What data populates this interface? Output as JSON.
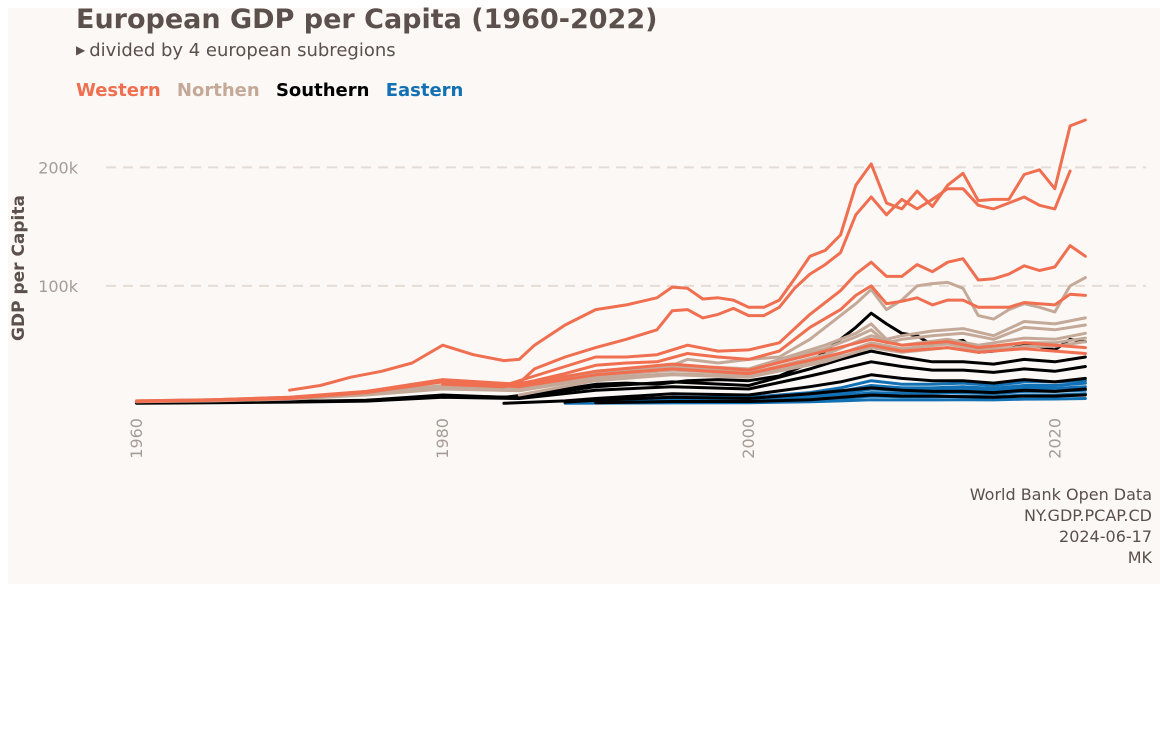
{
  "title": "European GDP per Capita  (1960-2022)",
  "subtitle": "divided by 4 european subregions",
  "caption": [
    "World Bank Open Data",
    "NY.GDP.PCAP.CD",
    "2024-06-17",
    "MK"
  ],
  "chart_data": {
    "type": "line",
    "ylabel": "GDP per Capita",
    "xlabel": "",
    "xlim": [
      1958,
      2024
    ],
    "ylim": [
      -3000,
      240000
    ],
    "x_ticks": [
      1960,
      1980,
      2000,
      2020
    ],
    "x_tick_labels": [
      "1960",
      "1980",
      "2000",
      "2020"
    ],
    "y_ticks": [
      100000,
      200000
    ],
    "y_tick_labels": [
      "100k",
      "200k"
    ],
    "grid": "horizontal dashed",
    "legend": [
      {
        "name": "Western",
        "color": "#ef6f50"
      },
      {
        "name": "Northen",
        "color": "#c4a999"
      },
      {
        "name": "Southern",
        "color": "#000000"
      },
      {
        "name": "Eastern",
        "color": "#1270b4"
      }
    ],
    "series": [
      {
        "name": "Western",
        "color": "#ef6f50",
        "x": [
          1970,
          1972,
          1974,
          1976,
          1978,
          1980,
          1982,
          1984,
          1985,
          1986,
          1988,
          1990,
          1992,
          1994,
          1995,
          1996,
          1997,
          1998,
          1999,
          2000,
          2001,
          2002,
          2003,
          2004,
          2005,
          2006,
          2007,
          2008,
          2009,
          2010,
          2011,
          2012,
          2013,
          2014,
          2015,
          2016,
          2017,
          2018,
          2019,
          2020,
          2021,
          2022
        ],
        "y": [
          12000,
          16000,
          23000,
          28000,
          35000,
          50000,
          42000,
          37000,
          38000,
          50000,
          67000,
          80000,
          84000,
          90000,
          99000,
          98000,
          89000,
          90000,
          88000,
          82000,
          82000,
          88000,
          106000,
          125000,
          130000,
          143000,
          185000,
          203000,
          170000,
          165000,
          180000,
          167000,
          185000,
          195000,
          172000,
          173000,
          173000,
          194000,
          198000,
          182000,
          235000,
          240000
        ]
      },
      {
        "name": "Western",
        "color": "#ef6f50",
        "x": [
          1980,
          1982,
          1984,
          1985,
          1986,
          1988,
          1990,
          1992,
          1994,
          1995,
          1996,
          1997,
          1998,
          1999,
          2000,
          2001,
          2002,
          2003,
          2004,
          2005,
          2006,
          2007,
          2008,
          2009,
          2010,
          2011,
          2012,
          2013,
          2014,
          2015,
          2016,
          2017,
          2018,
          2019,
          2020,
          2021
        ],
        "y": [
          20000,
          19000,
          17000,
          18000,
          30000,
          40000,
          48000,
          55000,
          63000,
          79000,
          80000,
          73000,
          76000,
          81000,
          75000,
          75000,
          82000,
          98000,
          110000,
          118000,
          128000,
          160000,
          175000,
          160000,
          173000,
          165000,
          173000,
          182000,
          182000,
          168000,
          165000,
          170000,
          175000,
          168000,
          165000,
          197000
        ]
      },
      {
        "name": "Western",
        "color": "#ef6f50",
        "x": [
          1980,
          1984,
          1986,
          1988,
          1990,
          1992,
          1994,
          1996,
          1998,
          2000,
          2002,
          2004,
          2006,
          2007,
          2008,
          2009,
          2010,
          2011,
          2012,
          2013,
          2014,
          2015,
          2016,
          2017,
          2018,
          2019,
          2020,
          2021,
          2022
        ],
        "y": [
          19000,
          16000,
          24000,
          32000,
          40000,
          40000,
          42000,
          50000,
          45000,
          46000,
          52000,
          76000,
          96000,
          110000,
          120000,
          108000,
          108000,
          118000,
          112000,
          120000,
          123000,
          105000,
          106000,
          110000,
          117000,
          113000,
          116000,
          134000,
          125000
        ]
      },
      {
        "name": "Western",
        "color": "#ef6f50",
        "x": [
          1980,
          1984,
          1986,
          1988,
          1990,
          1992,
          1994,
          1996,
          1998,
          2000,
          2002,
          2004,
          2006,
          2007,
          2008,
          2009,
          2010,
          2011,
          2012,
          2013,
          2014,
          2015,
          2016,
          2017,
          2018,
          2019,
          2020,
          2021,
          2022
        ],
        "y": [
          17000,
          15000,
          20000,
          26000,
          33000,
          35000,
          36000,
          43000,
          40000,
          38000,
          45000,
          65000,
          80000,
          92000,
          100000,
          85000,
          87000,
          90000,
          84000,
          88000,
          88000,
          82000,
          82000,
          82000,
          86000,
          85000,
          84000,
          93000,
          92000
        ]
      },
      {
        "name": "Western",
        "color": "#ef6f50",
        "x": [
          1960,
          1965,
          1970,
          1975,
          1980,
          1985,
          1990,
          1995,
          2000,
          2005,
          2008,
          2010,
          2013,
          2015,
          2018,
          2020,
          2022
        ],
        "y": [
          3000,
          4000,
          6000,
          11000,
          21000,
          17000,
          28000,
          34000,
          29000,
          45000,
          55000,
          50000,
          53000,
          48000,
          52000,
          50000,
          48000
        ]
      },
      {
        "name": "Western",
        "color": "#ef6f50",
        "x": [
          1960,
          1965,
          1970,
          1975,
          1980,
          1985,
          1990,
          1995,
          2000,
          2005,
          2008,
          2010,
          2013,
          2015,
          2018,
          2020,
          2022
        ],
        "y": [
          2500,
          3500,
          5000,
          10000,
          19000,
          15000,
          25000,
          30000,
          26000,
          40000,
          50000,
          45000,
          48000,
          44000,
          47000,
          45000,
          43000
        ]
      },
      {
        "name": "Northen",
        "color": "#c4a999",
        "x": [
          1960,
          1965,
          1970,
          1975,
          1980,
          1985,
          1988,
          1990,
          1992,
          1994,
          1996,
          1998,
          2000,
          2002,
          2004,
          2006,
          2007,
          2008,
          2009,
          2010,
          2011,
          2012,
          2013,
          2014,
          2015,
          2016,
          2017,
          2018,
          2019,
          2020,
          2021,
          2022
        ],
        "y": [
          3000,
          4000,
          6000,
          10000,
          15000,
          15000,
          22000,
          28000,
          30000,
          28000,
          38000,
          35000,
          38000,
          40000,
          55000,
          75000,
          85000,
          97000,
          80000,
          88000,
          100000,
          102000,
          103000,
          98000,
          75000,
          72000,
          80000,
          85000,
          82000,
          78000,
          100000,
          107000
        ]
      },
      {
        "name": "Northen",
        "color": "#c4a999",
        "x": [
          1960,
          1965,
          1970,
          1975,
          1980,
          1985,
          1990,
          1995,
          2000,
          2003,
          2005,
          2007,
          2008,
          2009,
          2010,
          2012,
          2014,
          2016,
          2018,
          2020,
          2022
        ],
        "y": [
          2800,
          3800,
          5500,
          9500,
          16000,
          14000,
          27000,
          33000,
          30000,
          42000,
          50000,
          60000,
          68000,
          55000,
          58000,
          62000,
          64000,
          58000,
          70000,
          68000,
          73000
        ]
      },
      {
        "name": "Northen",
        "color": "#c4a999",
        "x": [
          1960,
          1965,
          1970,
          1975,
          1980,
          1985,
          1990,
          1995,
          2000,
          2003,
          2005,
          2007,
          2008,
          2009,
          2010,
          2012,
          2014,
          2016,
          2018,
          2020,
          2022
        ],
        "y": [
          2600,
          3600,
          5200,
          9000,
          15000,
          13000,
          26000,
          31000,
          28000,
          40000,
          47000,
          57000,
          63000,
          52000,
          55000,
          58000,
          60000,
          55000,
          65000,
          63000,
          67000
        ]
      },
      {
        "name": "Northen",
        "color": "#c4a999",
        "x": [
          1960,
          1965,
          1970,
          1975,
          1980,
          1985,
          1990,
          1995,
          2000,
          2005,
          2008,
          2010,
          2013,
          2015,
          2018,
          2020,
          2022
        ],
        "y": [
          2400,
          3300,
          5000,
          8500,
          14000,
          12000,
          24000,
          29000,
          26000,
          42000,
          58000,
          50000,
          55000,
          50000,
          56000,
          55000,
          60000
        ]
      },
      {
        "name": "Northen",
        "color": "#c4a999",
        "x": [
          1960,
          1965,
          1970,
          1975,
          1980,
          1985,
          1990,
          1995,
          2000,
          2005,
          2008,
          2010,
          2013,
          2015,
          2018,
          2020,
          2022
        ],
        "y": [
          2200,
          3000,
          4500,
          8000,
          13000,
          11500,
          22000,
          26000,
          24000,
          38000,
          52000,
          47000,
          51000,
          46000,
          52000,
          52000,
          56000
        ]
      },
      {
        "name": "Northen",
        "color": "#c4a999",
        "x": [
          1985,
          1990,
          1995,
          2000,
          2005,
          2008,
          2010,
          2013,
          2015,
          2018,
          2020,
          2022
        ],
        "y": [
          8000,
          20000,
          25000,
          23000,
          36000,
          48000,
          44000,
          48000,
          44000,
          49000,
          49000,
          53000
        ]
      },
      {
        "name": "Southern",
        "color": "#000000",
        "x": [
          1960,
          1965,
          1970,
          1975,
          1980,
          1982,
          1984,
          1986,
          1988,
          1990,
          1992,
          1994,
          1996,
          1998,
          2000,
          2002,
          2004,
          2006,
          2007,
          2008,
          2009,
          2010,
          2011,
          2012,
          2013,
          2014,
          2015,
          2016,
          2017,
          2018,
          2019,
          2020,
          2021,
          2022
        ],
        "y": [
          1500,
          2000,
          2500,
          3500,
          8000,
          7000,
          6000,
          9000,
          13000,
          17000,
          18000,
          17000,
          20000,
          21000,
          20000,
          24000,
          35000,
          55000,
          65000,
          77000,
          68000,
          60000,
          58000,
          50000,
          52000,
          54000,
          44000,
          45000,
          47000,
          50000,
          49000,
          46000,
          55000,
          53000
        ]
      },
      {
        "name": "Southern",
        "color": "#000000",
        "x": [
          1960,
          1965,
          1970,
          1975,
          1980,
          1985,
          1990,
          1995,
          2000,
          2004,
          2006,
          2008,
          2010,
          2012,
          2014,
          2016,
          2018,
          2020,
          2022
        ],
        "y": [
          1200,
          1800,
          2400,
          3200,
          7000,
          6000,
          15000,
          19000,
          16000,
          30000,
          38000,
          45000,
          40000,
          36000,
          36000,
          34000,
          38000,
          36000,
          40000
        ]
      },
      {
        "name": "Southern",
        "color": "#000000",
        "x": [
          1960,
          1965,
          1970,
          1975,
          1980,
          1985,
          1990,
          1995,
          2000,
          2004,
          2006,
          2008,
          2010,
          2012,
          2014,
          2016,
          2018,
          2020,
          2022
        ],
        "y": [
          1000,
          1500,
          2000,
          2800,
          6000,
          5000,
          12000,
          15000,
          13000,
          24000,
          30000,
          36000,
          32000,
          29000,
          29000,
          27000,
          30000,
          28000,
          32000
        ]
      },
      {
        "name": "Southern",
        "color": "#000000",
        "x": [
          1984,
          1988,
          1990,
          1995,
          2000,
          2004,
          2006,
          2008,
          2010,
          2012,
          2014,
          2016,
          2018,
          2020,
          2022
        ],
        "y": [
          1000,
          3000,
          5000,
          9000,
          8000,
          15000,
          19000,
          25000,
          22000,
          20000,
          20000,
          18000,
          21000,
          19000,
          22000
        ]
      },
      {
        "name": "Southern",
        "color": "#000000",
        "x": [
          1988,
          1990,
          1995,
          2000,
          2004,
          2008,
          2010,
          2012,
          2014,
          2016,
          2018,
          2020,
          2022
        ],
        "y": [
          2000,
          3500,
          6000,
          5000,
          9000,
          14000,
          12000,
          11000,
          11000,
          10000,
          12000,
          11000,
          13000
        ]
      },
      {
        "name": "Southern",
        "color": "#000000",
        "x": [
          1990,
          1995,
          2000,
          2004,
          2008,
          2010,
          2012,
          2014,
          2016,
          2018,
          2020,
          2022
        ],
        "y": [
          1500,
          2500,
          2500,
          4000,
          8000,
          7000,
          7000,
          6500,
          6000,
          7000,
          7000,
          8000
        ]
      },
      {
        "name": "Eastern",
        "color": "#1270b4",
        "x": [
          1988,
          1990,
          1995,
          2000,
          2004,
          2006,
          2008,
          2010,
          2012,
          2014,
          2016,
          2018,
          2020,
          2022
        ],
        "y": [
          2500,
          3000,
          6000,
          6000,
          10000,
          14000,
          20000,
          17000,
          17000,
          18000,
          16000,
          19000,
          19000,
          20000
        ]
      },
      {
        "name": "Eastern",
        "color": "#1270b4",
        "x": [
          1988,
          1990,
          1995,
          2000,
          2004,
          2006,
          2008,
          2010,
          2012,
          2014,
          2016,
          2018,
          2020,
          2022
        ],
        "y": [
          2200,
          2600,
          5000,
          5000,
          8000,
          11000,
          16000,
          14000,
          14000,
          15000,
          13500,
          16000,
          16000,
          18000
        ]
      },
      {
        "name": "Eastern",
        "color": "#1270b4",
        "x": [
          1988,
          1990,
          1995,
          2000,
          2004,
          2006,
          2008,
          2010,
          2012,
          2014,
          2016,
          2018,
          2020,
          2022
        ],
        "y": [
          2000,
          2300,
          4000,
          4000,
          6500,
          9000,
          13000,
          12000,
          12000,
          12500,
          11500,
          13500,
          13500,
          15000
        ]
      },
      {
        "name": "Eastern",
        "color": "#1270b4",
        "x": [
          1988,
          1990,
          1995,
          2000,
          2004,
          2006,
          2008,
          2010,
          2012,
          2014,
          2016,
          2018,
          2020,
          2022
        ],
        "y": [
          1800,
          2000,
          3000,
          3000,
          5000,
          7000,
          10000,
          9500,
          9500,
          10000,
          9000,
          11000,
          11000,
          12000
        ]
      },
      {
        "name": "Eastern",
        "color": "#1270b4",
        "x": [
          1988,
          1990,
          1995,
          2000,
          2004,
          2006,
          2008,
          2010,
          2012,
          2014,
          2016,
          2018,
          2020,
          2022
        ],
        "y": [
          1500,
          1700,
          2000,
          2000,
          3500,
          5000,
          7000,
          6500,
          6500,
          7000,
          6500,
          8000,
          8000,
          9000
        ]
      },
      {
        "name": "Eastern",
        "color": "#1270b4",
        "x": [
          1988,
          1990,
          1995,
          2000,
          2004,
          2006,
          2008,
          2010,
          2012,
          2014,
          2016,
          2018,
          2020,
          2022
        ],
        "y": [
          1000,
          1100,
          1300,
          1500,
          2200,
          3000,
          4000,
          3800,
          3800,
          4000,
          3800,
          4500,
          4600,
          5000
        ]
      }
    ]
  }
}
